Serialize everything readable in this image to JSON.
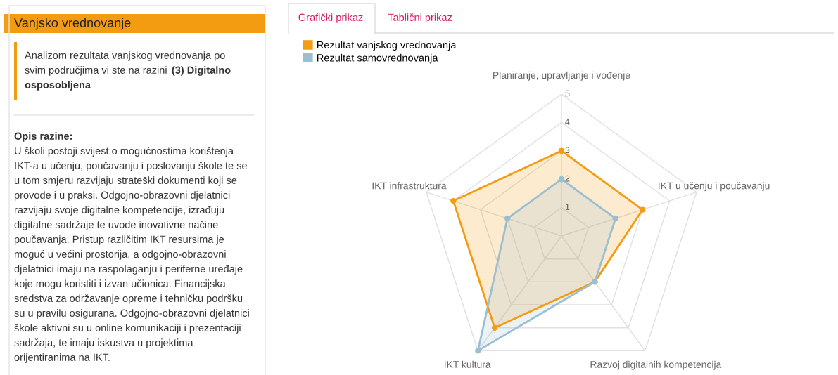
{
  "chart_data": [
    {
      "type": "other",
      "title": "Vanjsko vrednovanje",
      "color": "#f39c12",
      "annotations": [
        "Analizom rezultata vanjskog vrednovanja po",
        "svim područjima vi ste na razini",
        "(3) Digitalno",
        "osposobljena",
        "Opis razine:",
        "U školi postoji svijest o mogućnostima korištenja",
        "IKT-a u učenju, poučavanju i poslovanju škole te se",
        "u tom smjeru razvijaju strateški dokumenti koji se",
        "provode i u praksi. Odgojno-obrazovni djelatnici",
        "razvijaju svoje digitalne kompetencije, izrađuju",
        "digitalne sadržaje te uvode inovativne načine",
        "poučavanja. Pristup različitim IKT resursima je",
        "moguć u većini prostorija, a odgojno-obrazovni",
        "djelatnici imaju na raspolaganju i periferne uređaje",
        "koje mogu koristiti i izvan učionica. Financijska",
        "sredstva za održavanje opreme i tehničku podršku",
        "su u pravilu osigurana. Odgojno-obrazovni djelatnici",
        "škole aktivni su u online komunikaciji i prezentaciji",
        "sadržaja, te imaju iskustva u projektima",
        "orijentiranima na IKT."
      ]
    },
    {
      "type": "radar",
      "annotations": [
        "Grafički prikaz",
        "Tablični prikaz"
      ],
      "categories": [
        "Planiranje, upravljanje i vođenje",
        "IKT u učenju i poučavanju",
        "Razvoj digitalnih kompetencija",
        "IKT kultura",
        "IKT infrastruktura"
      ],
      "series": [
        {
          "name": "Rezultat vanjskog vrednovanja",
          "color": "#f39c12",
          "values": [
            3,
            3,
            2,
            4,
            4
          ]
        },
        {
          "name": "Rezultat samovrednovanja",
          "color": "#9bbfd0",
          "values": [
            2,
            2,
            2,
            5,
            2
          ]
        }
      ],
      "ylim": [
        0,
        5
      ],
      "yticks": [
        1,
        2,
        3,
        4,
        5
      ],
      "grid": true,
      "legend": "top left",
      "marker": "circle"
    }
  ]
}
